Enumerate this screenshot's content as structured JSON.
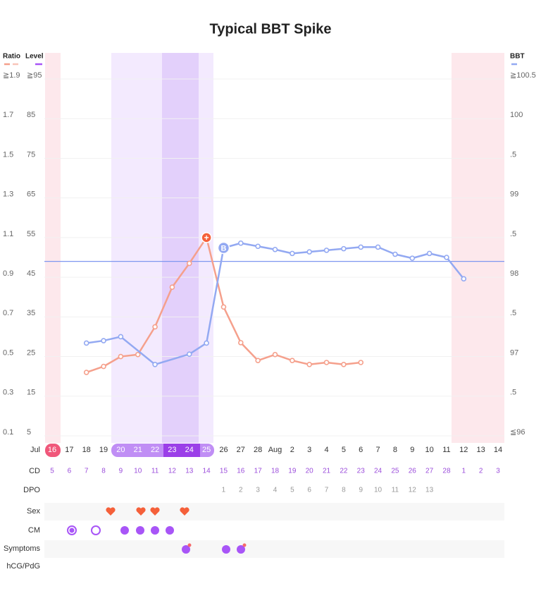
{
  "chart_data": {
    "type": "line",
    "title": "Typical BBT Spike",
    "axis_labels": {
      "ratio": "Ratio",
      "level": "Level",
      "bbt": "BBT"
    },
    "ylim": [
      0.1,
      1.9
    ],
    "yticks": [
      {
        "value": 1.9,
        "label": "≧1.9"
      },
      1.7,
      1.5,
      1.3,
      1.1,
      0.9,
      0.7,
      0.5,
      0.3,
      0.1
    ],
    "level_lim": [
      5,
      95
    ],
    "level_ticks": [
      {
        "value": 95,
        "label": "≧95"
      },
      85,
      75,
      65,
      55,
      45,
      35,
      25,
      15,
      5
    ],
    "level_color": "#a855f7",
    "y2lim": [
      96,
      100.5
    ],
    "y2ticks": [
      {
        "value": 100.5,
        "label": "≧100.5"
      },
      100,
      {
        "value": 99.5,
        "label": ".5"
      },
      99,
      {
        "value": 98.5,
        "label": ".5"
      },
      98,
      {
        "value": 97.5,
        "label": ".5"
      },
      97,
      {
        "value": 96.5,
        "label": ".5"
      },
      {
        "value": 96,
        "label": "≦96"
      }
    ],
    "grid": true,
    "coverline": 98.2,
    "month_label": "Jul",
    "categories": [
      "16",
      "17",
      "18",
      "19",
      "20",
      "21",
      "22",
      "23",
      "24",
      "25",
      "26",
      "27",
      "28",
      "Aug",
      "2",
      "3",
      "4",
      "5",
      "6",
      "7",
      "8",
      "9",
      "10",
      "11",
      "12",
      "13",
      "14"
    ],
    "series": [
      {
        "name": "Ratio",
        "color": "#f5a08c",
        "values": [
          null,
          null,
          0.42,
          0.45,
          0.5,
          0.51,
          0.65,
          0.85,
          0.97,
          1.1,
          0.75,
          0.57,
          0.48,
          0.51,
          0.48,
          0.46,
          0.47,
          0.46,
          0.47,
          null,
          null,
          null,
          null,
          null,
          null,
          null,
          null
        ]
      },
      {
        "name": "BBT",
        "color": "#93a9f2",
        "axis": "y2",
        "values": [
          null,
          null,
          97.17,
          97.2,
          97.25,
          null,
          96.9,
          null,
          97.03,
          97.17,
          98.37,
          98.43,
          98.39,
          98.35,
          98.3,
          98.32,
          98.34,
          98.36,
          98.38,
          98.38,
          98.29,
          98.24,
          98.3,
          98.25,
          97.98,
          null,
          null
        ]
      }
    ],
    "peak_marker_label": "+",
    "rise_marker_label": "B",
    "rows": {
      "cd_label": "CD",
      "dpo_label": "DPO",
      "sex_label": "Sex",
      "cm_label": "CM",
      "symptoms_label": "Symptoms",
      "hcg_label": "hCG/PdG"
    },
    "cycle_day": [
      5,
      6,
      7,
      8,
      9,
      10,
      11,
      12,
      13,
      14,
      15,
      16,
      17,
      18,
      19,
      20,
      21,
      22,
      23,
      24,
      25,
      26,
      27,
      28,
      1,
      2,
      3
    ],
    "dpo": [
      null,
      null,
      null,
      null,
      null,
      null,
      null,
      null,
      null,
      null,
      1,
      2,
      3,
      4,
      5,
      6,
      7,
      8,
      9,
      10,
      11,
      12,
      13,
      null,
      null,
      null,
      null
    ]
  }
}
